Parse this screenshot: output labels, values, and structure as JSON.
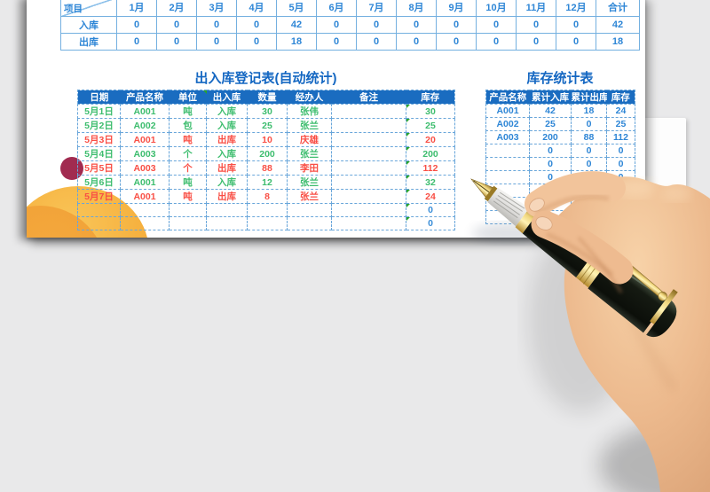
{
  "page": {
    "background": "#e9e9ea",
    "paper_color": "#ffffff"
  },
  "colors": {
    "header_bg": "#1a6cc0",
    "title_blue": "#1467c2",
    "value_blue": "#2e86d6",
    "in_green": "#3dbd6e",
    "out_red": "#f94f45",
    "solid_border_blue": "#74b0e0",
    "dashed_border_blue": "#69a6da",
    "error_indicator_green": "#2aa52a",
    "decor_orange": "#f6b240",
    "decor_crimson": "#a12b50"
  },
  "monthly_summary": {
    "row_header_label": "项目",
    "months": [
      "1月",
      "2月",
      "3月",
      "4月",
      "5月",
      "6月",
      "7月",
      "8月",
      "9月",
      "10月",
      "11月",
      "12月"
    ],
    "total_label": "合计",
    "rows": [
      {
        "label": "入库",
        "m1": "0",
        "m2": "0",
        "m3": "0",
        "m4": "0",
        "m5": "42",
        "m6": "0",
        "m7": "0",
        "m8": "0",
        "m9": "0",
        "m10": "0",
        "m11": "0",
        "m12": "0",
        "total": "42",
        "kind": "plain"
      },
      {
        "label": "出库",
        "m1": "0",
        "m2": "0",
        "m3": "0",
        "m4": "0",
        "m5": "18",
        "m6": "0",
        "m7": "0",
        "m8": "0",
        "m9": "0",
        "m10": "0",
        "m11": "0",
        "m12": "0",
        "total": "18",
        "kind": "plain"
      }
    ]
  },
  "register_table": {
    "title": "出入库登记表(自动统计)",
    "headers": [
      "日期",
      "产品名称",
      "单位",
      "出入库",
      "数量",
      "经办人",
      "备注",
      "库存"
    ],
    "rows": [
      {
        "date": "5月1日",
        "product": "A001",
        "unit": "吨",
        "type": "入库",
        "qty": "30",
        "handler": "张伟",
        "note": "",
        "stock": "30",
        "kind": "in"
      },
      {
        "date": "5月2日",
        "product": "A002",
        "unit": "包",
        "type": "入库",
        "qty": "25",
        "handler": "张兰",
        "note": "",
        "stock": "25",
        "kind": "in"
      },
      {
        "date": "5月3日",
        "product": "A001",
        "unit": "吨",
        "type": "出库",
        "qty": "10",
        "handler": "庆雄",
        "note": "",
        "stock": "20",
        "kind": "out"
      },
      {
        "date": "5月4日",
        "product": "A003",
        "unit": "个",
        "type": "入库",
        "qty": "200",
        "handler": "张兰",
        "note": "",
        "stock": "200",
        "kind": "in"
      },
      {
        "date": "5月5日",
        "product": "A003",
        "unit": "个",
        "type": "出库",
        "qty": "88",
        "handler": "李田",
        "note": "",
        "stock": "112",
        "kind": "out"
      },
      {
        "date": "5月6日",
        "product": "A001",
        "unit": "吨",
        "type": "入库",
        "qty": "12",
        "handler": "张兰",
        "note": "",
        "stock": "32",
        "kind": "in"
      },
      {
        "date": "5月7日",
        "product": "A001",
        "unit": "吨",
        "type": "出库",
        "qty": "8",
        "handler": "张兰",
        "note": "",
        "stock": "24",
        "kind": "out"
      },
      {
        "date": "",
        "product": "",
        "unit": "",
        "type": "",
        "qty": "",
        "handler": "",
        "note": "",
        "stock": "0",
        "kind": "empty"
      },
      {
        "date": "",
        "product": "",
        "unit": "",
        "type": "",
        "qty": "",
        "handler": "",
        "note": "",
        "stock": "0",
        "kind": "empty"
      }
    ]
  },
  "stock_table": {
    "title": "库存统计表",
    "headers": [
      "产品名称",
      "累计入库",
      "累计出库",
      "库存"
    ],
    "rows": [
      {
        "product": "A001",
        "in": "42",
        "out": "18",
        "stock": "24",
        "kind": "plain"
      },
      {
        "product": "A002",
        "in": "25",
        "out": "0",
        "stock": "25",
        "kind": "plain"
      },
      {
        "product": "A003",
        "in": "200",
        "out": "88",
        "stock": "112",
        "kind": "plain"
      },
      {
        "product": "",
        "in": "0",
        "out": "0",
        "stock": "0",
        "kind": "plain"
      },
      {
        "product": "",
        "in": "0",
        "out": "0",
        "stock": "0",
        "kind": "plain"
      },
      {
        "product": "",
        "in": "0",
        "out": "0",
        "stock": "0",
        "kind": "plain"
      },
      {
        "product": "",
        "in": "0",
        "out": "0",
        "stock": "0",
        "kind": "plain"
      },
      {
        "product": "",
        "in": "0",
        "out": "0",
        "stock": "0",
        "kind": "plain"
      },
      {
        "product": "",
        "in": "0",
        "out": "0",
        "stock": "0",
        "kind": "plain"
      }
    ]
  }
}
